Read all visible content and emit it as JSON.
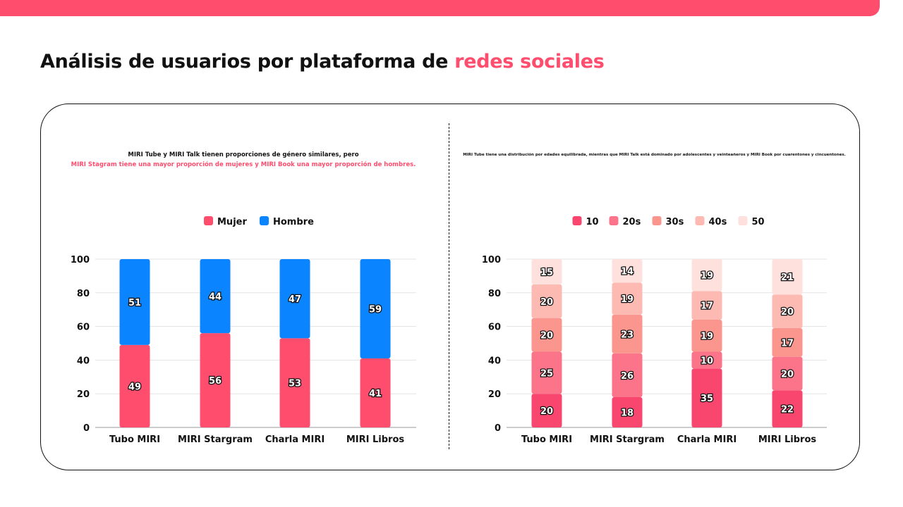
{
  "header": {
    "title_main": "Análisis de usuarios por plataforma de ",
    "title_highlight": "redes sociales"
  },
  "colors": {
    "accent": "#ff4d6d",
    "mujer": "#ff4d6d",
    "hombre": "#0a84ff",
    "age": [
      "#f9466f",
      "#fb7489",
      "#fb968f",
      "#fdbab3",
      "#fee0dc"
    ]
  },
  "chart_data": [
    {
      "type": "bar",
      "stacked": true,
      "subtitle_line1": "MIRI Tube y MIRI Talk tienen proporciones de género similares, pero",
      "subtitle_line2": "MIRI Stagram tiene una mayor proporción de mujeres y MIRI Book una mayor proporción de hombres.",
      "categories": [
        "Tubo MIRI",
        "MIRI Stargram",
        "Charla MIRI",
        "MIRI Libros"
      ],
      "series": [
        {
          "name": "Mujer",
          "values": [
            49,
            56,
            53,
            41
          ]
        },
        {
          "name": "Hombre",
          "values": [
            51,
            44,
            47,
            59
          ]
        }
      ],
      "yticks": [
        0,
        20,
        40,
        60,
        80,
        100
      ],
      "ylim": [
        0,
        100
      ],
      "legend": "top-center",
      "grid": true
    },
    {
      "type": "bar",
      "stacked": true,
      "subtitle_line1": "MIRI Tube tiene una distribución por edades equilibrada, mientras que MIRI Talk está dominado por adolescentes y veinteañeros y MIRI Book por cuarentones y cincuentones.",
      "categories": [
        "Tubo MIRI",
        "MIRI Stargram",
        "Charla MIRI",
        "MIRI Libros"
      ],
      "series": [
        {
          "name": "10",
          "values": [
            20,
            18,
            35,
            22
          ]
        },
        {
          "name": "20s",
          "values": [
            25,
            26,
            10,
            20
          ]
        },
        {
          "name": "30s",
          "values": [
            20,
            23,
            19,
            17
          ]
        },
        {
          "name": "40s",
          "values": [
            20,
            19,
            17,
            20
          ]
        },
        {
          "name": "50",
          "values": [
            15,
            14,
            19,
            21
          ]
        }
      ],
      "yticks": [
        0,
        20,
        40,
        60,
        80,
        100
      ],
      "ylim": [
        0,
        100
      ],
      "legend": "top-center",
      "grid": true
    }
  ]
}
